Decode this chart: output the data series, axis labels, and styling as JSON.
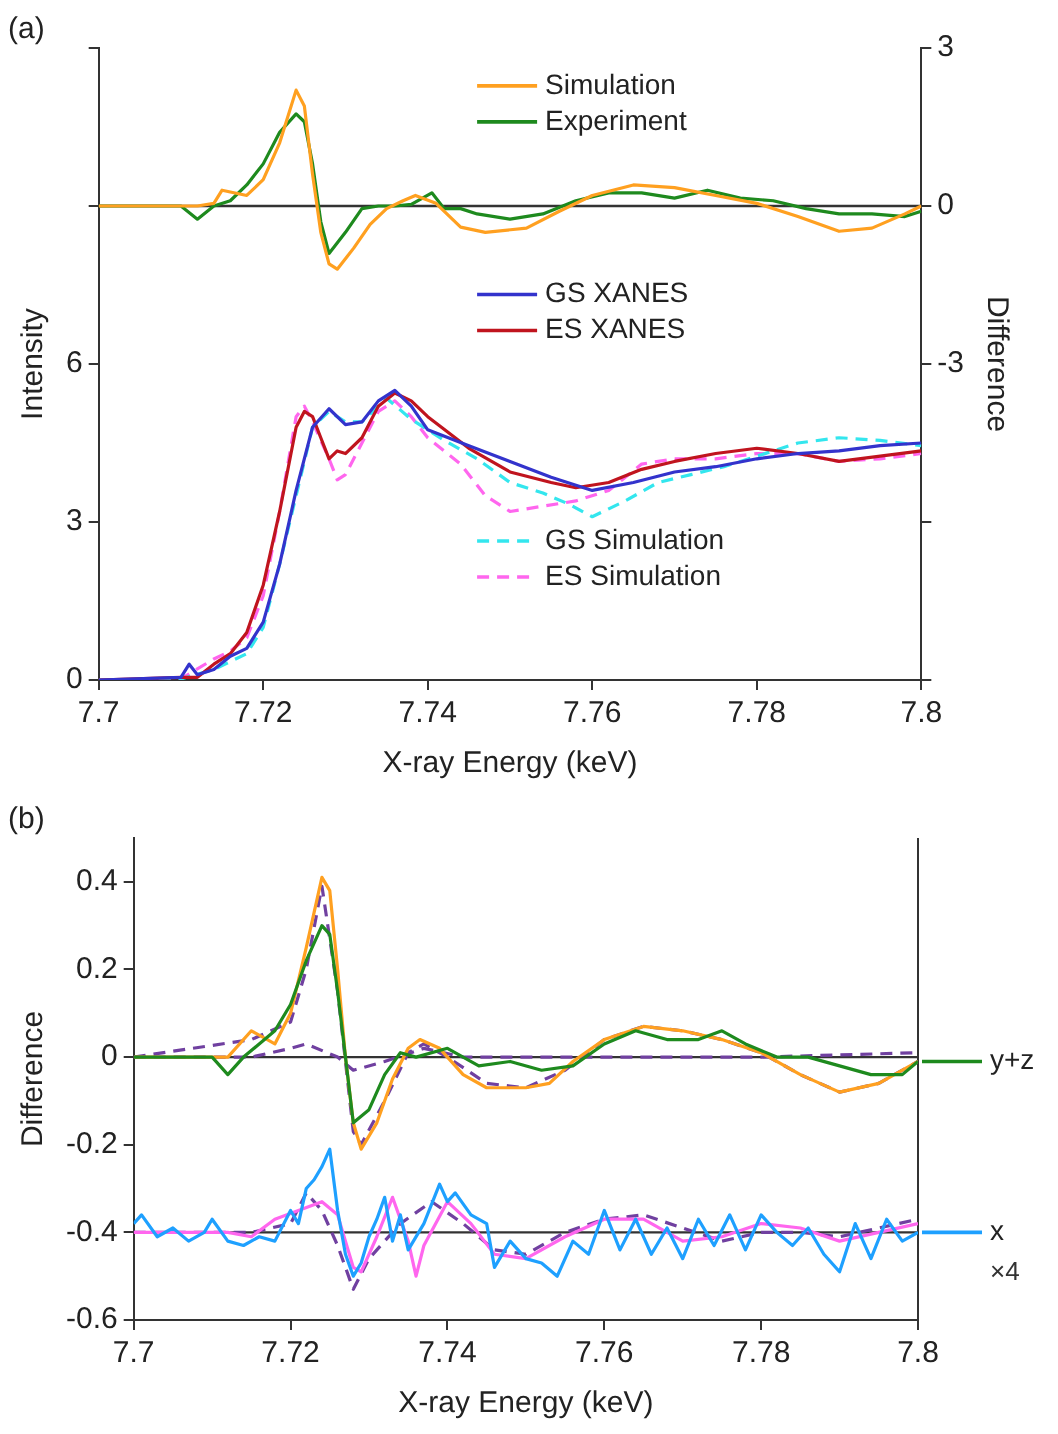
{
  "chart_data": [
    {
      "type": "line",
      "title": "(a)",
      "xlabel": "X-ray Energy (keV)",
      "ylabel": "Intensity",
      "y2label": "Difference",
      "xlim": [
        7.7,
        7.8
      ],
      "xticks": [
        7.7,
        7.72,
        7.74,
        7.76,
        7.78,
        7.8
      ],
      "ylim": [
        0,
        12
      ],
      "yticks": [
        0,
        3,
        6,
        {
          "value": 9,
          "label": null
        },
        {
          "value": 12,
          "label": null
        }
      ],
      "y2lim": [
        -9,
        3
      ],
      "y2ticks": [
        {
          "value": -9,
          "label": null
        },
        {
          "value": -6,
          "label": null
        },
        -3,
        0,
        3
      ],
      "grid": false,
      "legend": "right",
      "marker": "none",
      "ref_lines": [
        {
          "axis": "y2",
          "value": 0,
          "color": "#333333"
        }
      ],
      "series": [
        {
          "name": "Simulation",
          "color": "#ffa020",
          "axis": "y2",
          "x": [
            7.7,
            7.712,
            7.714,
            7.715,
            7.718,
            7.72,
            7.722,
            7.724,
            7.725,
            7.726,
            7.727,
            7.728,
            7.729,
            7.731,
            7.733,
            7.735,
            7.737,
            7.7385,
            7.741,
            7.744,
            7.747,
            7.752,
            7.756,
            7.76,
            7.765,
            7.77,
            7.775,
            7.78,
            7.785,
            7.79,
            7.794,
            7.798,
            7.8
          ],
          "values": [
            0,
            0,
            0.05,
            0.3,
            0.2,
            0.5,
            1.2,
            2.2,
            1.9,
            0.6,
            -0.5,
            -1.1,
            -1.2,
            -0.8,
            -0.35,
            -0.05,
            0.1,
            0.2,
            0.05,
            -0.4,
            -0.5,
            -0.42,
            -0.1,
            0.2,
            0.4,
            0.35,
            0.2,
            0.05,
            -0.2,
            -0.48,
            -0.42,
            -0.15,
            0
          ]
        },
        {
          "name": "Experiment",
          "color": "#1e8a1e",
          "axis": "y2",
          "x": [
            7.7,
            7.71,
            7.712,
            7.714,
            7.716,
            7.718,
            7.72,
            7.722,
            7.724,
            7.725,
            7.726,
            7.727,
            7.728,
            7.73,
            7.732,
            7.734,
            7.736,
            7.738,
            7.7405,
            7.742,
            7.744,
            7.746,
            7.75,
            7.754,
            7.758,
            7.762,
            7.766,
            7.77,
            7.774,
            7.778,
            7.782,
            7.786,
            7.79,
            7.794,
            7.798,
            7.8
          ],
          "values": [
            0,
            0,
            -0.25,
            0,
            0.1,
            0.4,
            0.8,
            1.4,
            1.75,
            1.6,
            0.8,
            -0.3,
            -0.9,
            -0.5,
            -0.05,
            0,
            0,
            0.03,
            0.25,
            -0.05,
            -0.05,
            -0.15,
            -0.25,
            -0.15,
            0.1,
            0.25,
            0.25,
            0.15,
            0.3,
            0.15,
            0.1,
            -0.05,
            -0.15,
            -0.15,
            -0.2,
            -0.1
          ]
        },
        {
          "name": "GS XANES",
          "color": "#3333cc",
          "x": [
            7.7,
            7.71,
            7.711,
            7.712,
            7.714,
            7.716,
            7.718,
            7.72,
            7.722,
            7.724,
            7.726,
            7.728,
            7.73,
            7.732,
            7.734,
            7.736,
            7.738,
            7.74,
            7.745,
            7.75,
            7.755,
            7.76,
            7.765,
            7.77,
            7.775,
            7.78,
            7.785,
            7.79,
            7.795,
            7.8
          ],
          "values": [
            0,
            0.05,
            0.3,
            0.1,
            0.2,
            0.45,
            0.6,
            1.1,
            2.2,
            3.6,
            4.8,
            5.15,
            4.85,
            4.9,
            5.3,
            5.5,
            5.2,
            4.75,
            4.45,
            4.15,
            3.85,
            3.6,
            3.75,
            3.95,
            4.05,
            4.2,
            4.3,
            4.35,
            4.45,
            4.5
          ]
        },
        {
          "name": "ES XANES",
          "color": "#c0141e",
          "x": [
            7.7,
            7.71,
            7.712,
            7.714,
            7.716,
            7.718,
            7.72,
            7.722,
            7.724,
            7.725,
            7.726,
            7.727,
            7.728,
            7.729,
            7.73,
            7.732,
            7.734,
            7.736,
            7.738,
            7.74,
            7.745,
            7.75,
            7.755,
            7.758,
            7.762,
            7.766,
            7.77,
            7.775,
            7.78,
            7.785,
            7.79,
            7.795,
            7.8
          ],
          "values": [
            0,
            0.05,
            0.05,
            0.3,
            0.5,
            0.9,
            1.8,
            3.2,
            4.8,
            5.1,
            5,
            4.6,
            4.2,
            4.35,
            4.3,
            4.6,
            5.2,
            5.45,
            5.3,
            5,
            4.4,
            3.95,
            3.75,
            3.65,
            3.75,
            4,
            4.15,
            4.3,
            4.4,
            4.3,
            4.15,
            4.25,
            4.35
          ]
        },
        {
          "name": "GS Simulation",
          "color": "#33e6ee",
          "line_style": "dashed",
          "x": [
            7.7,
            7.71,
            7.714,
            7.718,
            7.72,
            7.722,
            7.724,
            7.726,
            7.728,
            7.73,
            7.732,
            7.735,
            7.738,
            7.742,
            7.746,
            7.75,
            7.754,
            7.757,
            7.76,
            7.764,
            7.768,
            7.772,
            7.776,
            7.78,
            7.785,
            7.79,
            7.795,
            7.8
          ],
          "values": [
            0,
            0.02,
            0.2,
            0.5,
            1,
            2.2,
            3.5,
            4.8,
            5.1,
            4.9,
            4.9,
            5.35,
            4.95,
            4.55,
            4.2,
            3.75,
            3.55,
            3.35,
            3.1,
            3.4,
            3.75,
            3.9,
            4.05,
            4.25,
            4.5,
            4.6,
            4.55,
            4.45
          ]
        },
        {
          "name": "ES Simulation",
          "color": "#ff66ee",
          "line_style": "dashed",
          "x": [
            7.7,
            7.71,
            7.714,
            7.716,
            7.718,
            7.72,
            7.722,
            7.724,
            7.725,
            7.726,
            7.728,
            7.729,
            7.73,
            7.732,
            7.734,
            7.736,
            7.738,
            7.74,
            7.744,
            7.747,
            7.75,
            7.754,
            7.758,
            7.762,
            7.766,
            7.77,
            7.775,
            7.78,
            7.785,
            7.79,
            7.795,
            7.8
          ],
          "values": [
            0,
            0.02,
            0.4,
            0.55,
            0.8,
            1.6,
            3.2,
            5,
            5.2,
            4.9,
            4.2,
            3.8,
            3.9,
            4.5,
            5.1,
            5.3,
            5,
            4.6,
            4.1,
            3.5,
            3.2,
            3.3,
            3.4,
            3.6,
            4.1,
            4.2,
            4.2,
            4.3,
            4.3,
            4.15,
            4.2,
            4.3
          ]
        }
      ]
    },
    {
      "type": "line",
      "title": "(b)",
      "xlabel": "X-ray Energy (keV)",
      "ylabel": "Difference",
      "annotations": [
        "×4"
      ],
      "xlim": [
        7.7,
        7.8
      ],
      "xticks": [
        7.7,
        7.72,
        7.74,
        7.76,
        7.78,
        7.8
      ],
      "ylim": [
        -0.6,
        0.5
      ],
      "yticks": [
        -0.6,
        -0.4,
        -0.2,
        0,
        0.2,
        0.4
      ],
      "grid": false,
      "legend": "right",
      "marker": "none",
      "ref_lines": [
        {
          "axis": "y",
          "value": 0,
          "color": "#333333"
        },
        {
          "axis": "y",
          "value": -0.4,
          "color": "#333333"
        }
      ],
      "series": [
        {
          "name": "y+z",
          "color": "#1e8a1e",
          "x": [
            7.7,
            7.705,
            7.71,
            7.712,
            7.714,
            7.716,
            7.718,
            7.72,
            7.722,
            7.724,
            7.725,
            7.726,
            7.727,
            7.728,
            7.73,
            7.732,
            7.734,
            7.736,
            7.74,
            7.744,
            7.748,
            7.752,
            7.756,
            7.76,
            7.764,
            7.768,
            7.772,
            7.775,
            7.778,
            7.782,
            7.786,
            7.79,
            7.794,
            7.798,
            7.8
          ],
          "values": [
            0,
            0,
            0,
            -0.04,
            0,
            0.03,
            0.06,
            0.12,
            0.22,
            0.3,
            0.28,
            0.15,
            0,
            -0.15,
            -0.12,
            -0.04,
            0.01,
            0,
            0.02,
            -0.02,
            -0.01,
            -0.03,
            -0.02,
            0.03,
            0.06,
            0.04,
            0.04,
            0.06,
            0.03,
            0,
            0,
            -0.02,
            -0.04,
            -0.04,
            -0.01
          ]
        },
        {
          "color": "#ffa020",
          "x": [
            7.7,
            7.712,
            7.715,
            7.718,
            7.72,
            7.722,
            7.724,
            7.725,
            7.726,
            7.727,
            7.728,
            7.729,
            7.731,
            7.733,
            7.735,
            7.7365,
            7.739,
            7.742,
            7.745,
            7.75,
            7.753,
            7.756,
            7.76,
            7.765,
            7.77,
            7.775,
            7.78,
            7.785,
            7.79,
            7.795,
            7.8
          ],
          "values": [
            0,
            0,
            0.06,
            0.03,
            0.1,
            0.25,
            0.41,
            0.38,
            0.2,
            0,
            -0.15,
            -0.21,
            -0.15,
            -0.05,
            0.02,
            0.04,
            0.02,
            -0.04,
            -0.07,
            -0.07,
            -0.06,
            -0.01,
            0.04,
            0.07,
            0.06,
            0.04,
            0.01,
            -0.04,
            -0.08,
            -0.06,
            -0.01
          ]
        },
        {
          "color": "#7040a0",
          "line_style": "dashed",
          "x": [
            7.7,
            7.715,
            7.72,
            7.722,
            7.724,
            7.726,
            7.728,
            7.729,
            7.732,
            7.735,
            7.737,
            7.74,
            7.745,
            7.75,
            7.755,
            7.76,
            7.765,
            7.77,
            7.775,
            7.78,
            7.785,
            7.79,
            7.795,
            7.8
          ],
          "values": [
            0,
            0.04,
            0.08,
            0.2,
            0.39,
            0.15,
            -0.17,
            -0.2,
            -0.1,
            0.01,
            0.03,
            0,
            -0.06,
            -0.07,
            -0.03,
            0.04,
            0.07,
            0.06,
            0.04,
            0.01,
            -0.04,
            -0.08,
            -0.06,
            -0.01
          ]
        },
        {
          "color": "#7040a0",
          "line_style": "dashed",
          "x": [
            7.7,
            7.715,
            7.72,
            7.722,
            7.726,
            7.728,
            7.732,
            7.737,
            7.742,
            7.75,
            7.76,
            7.77,
            7.78,
            7.8
          ],
          "values": [
            0,
            0,
            0.02,
            0.03,
            0,
            -0.03,
            -0.01,
            0.02,
            0,
            0,
            0,
            0,
            0,
            0.01
          ]
        },
        {
          "name": "x",
          "color": "#1ea0ff",
          "x": [
            7.7,
            7.701,
            7.703,
            7.705,
            7.707,
            7.709,
            7.71,
            7.712,
            7.714,
            7.716,
            7.718,
            7.72,
            7.721,
            7.722,
            7.723,
            7.724,
            7.725,
            7.726,
            7.727,
            7.728,
            7.729,
            7.73,
            7.731,
            7.732,
            7.733,
            7.734,
            7.735,
            7.737,
            7.739,
            7.74,
            7.741,
            7.743,
            7.745,
            7.746,
            7.748,
            7.75,
            7.752,
            7.754,
            7.756,
            7.758,
            7.76,
            7.762,
            7.764,
            7.766,
            7.768,
            7.77,
            7.772,
            7.774,
            7.776,
            7.778,
            7.78,
            7.782,
            7.784,
            7.786,
            7.788,
            7.79,
            7.792,
            7.794,
            7.796,
            7.798,
            7.8
          ],
          "values": [
            -0.38,
            -0.36,
            -0.41,
            -0.39,
            -0.42,
            -0.4,
            -0.37,
            -0.42,
            -0.43,
            -0.41,
            -0.42,
            -0.35,
            -0.38,
            -0.3,
            -0.28,
            -0.25,
            -0.21,
            -0.35,
            -0.45,
            -0.5,
            -0.47,
            -0.41,
            -0.37,
            -0.32,
            -0.42,
            -0.36,
            -0.44,
            -0.38,
            -0.29,
            -0.33,
            -0.31,
            -0.36,
            -0.38,
            -0.48,
            -0.42,
            -0.46,
            -0.47,
            -0.5,
            -0.42,
            -0.45,
            -0.35,
            -0.44,
            -0.37,
            -0.45,
            -0.39,
            -0.46,
            -0.37,
            -0.43,
            -0.36,
            -0.44,
            -0.36,
            -0.4,
            -0.43,
            -0.39,
            -0.45,
            -0.49,
            -0.38,
            -0.46,
            -0.37,
            -0.42,
            -0.4
          ]
        },
        {
          "color": "#ff66ee",
          "x": [
            7.7,
            7.712,
            7.715,
            7.718,
            7.721,
            7.724,
            7.726,
            7.728,
            7.729,
            7.731,
            7.733,
            7.735,
            7.736,
            7.737,
            7.74,
            7.743,
            7.746,
            7.75,
            7.755,
            7.76,
            7.765,
            7.77,
            7.775,
            7.78,
            7.785,
            7.79,
            7.795,
            7.8
          ],
          "values": [
            -0.4,
            -0.4,
            -0.41,
            -0.37,
            -0.35,
            -0.33,
            -0.36,
            -0.48,
            -0.49,
            -0.41,
            -0.32,
            -0.42,
            -0.5,
            -0.43,
            -0.33,
            -0.38,
            -0.45,
            -0.46,
            -0.41,
            -0.37,
            -0.37,
            -0.42,
            -0.41,
            -0.38,
            -0.39,
            -0.42,
            -0.4,
            -0.38
          ]
        },
        {
          "color": "#7040a0",
          "line_style": "dashed",
          "x": [
            7.7,
            7.715,
            7.72,
            7.722,
            7.724,
            7.726,
            7.728,
            7.73,
            7.734,
            7.738,
            7.742,
            7.746,
            7.75,
            7.755,
            7.76,
            7.765,
            7.77,
            7.775,
            7.78,
            7.785,
            7.79,
            7.795,
            7.8
          ],
          "values": [
            -0.4,
            -0.4,
            -0.38,
            -0.31,
            -0.35,
            -0.43,
            -0.53,
            -0.46,
            -0.38,
            -0.33,
            -0.38,
            -0.44,
            -0.45,
            -0.4,
            -0.37,
            -0.36,
            -0.39,
            -0.42,
            -0.4,
            -0.4,
            -0.41,
            -0.39,
            -0.37
          ]
        }
      ]
    }
  ]
}
